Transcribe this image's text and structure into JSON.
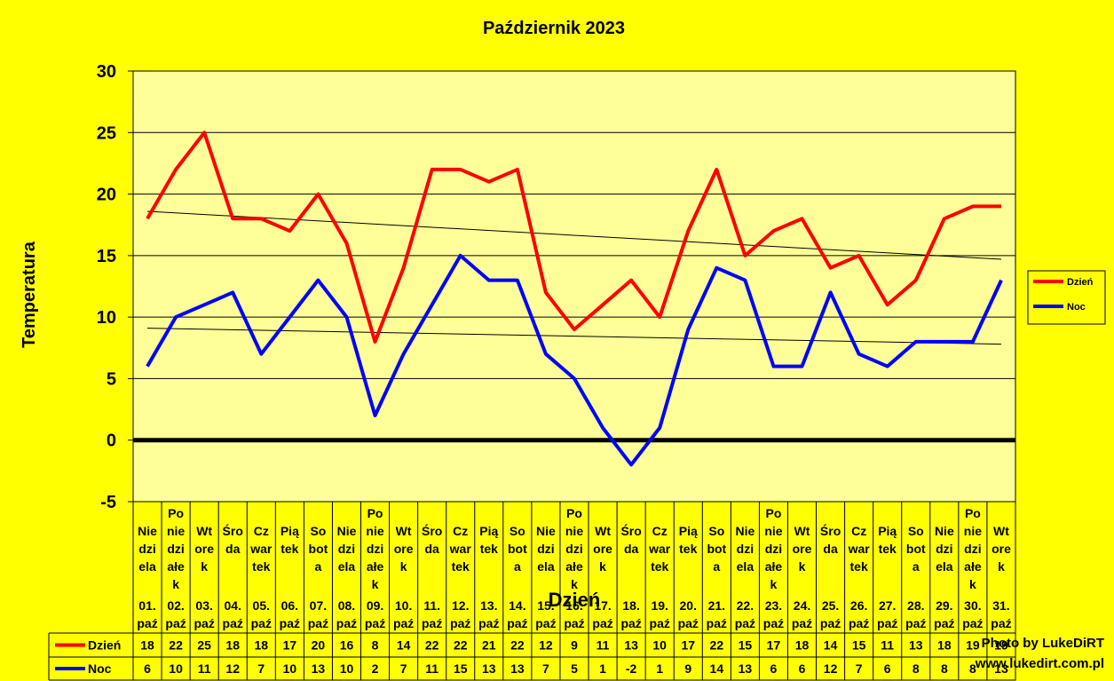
{
  "chart_data": {
    "type": "line",
    "title": "Październik 2023",
    "ylabel": "Temperatura",
    "xlabel": "Dzień",
    "ylim": [
      -5,
      30
    ],
    "yticks": [
      "30",
      "25",
      "20",
      "15",
      "10",
      "5",
      "0",
      "-5"
    ],
    "grid": true,
    "legend_position": "right",
    "weekdays": [
      [
        "Nie",
        "dzi",
        "ela"
      ],
      [
        "Po",
        "nie",
        "dzi",
        "ałe",
        "k"
      ],
      [
        "Wt",
        "ore",
        "k"
      ],
      [
        "Śro",
        "da"
      ],
      [
        "Cz",
        "war",
        "tek"
      ],
      [
        "Pią",
        "tek"
      ],
      [
        "So",
        "bot",
        "a"
      ],
      [
        "Nie",
        "dzi",
        "ela"
      ],
      [
        "Po",
        "nie",
        "dzi",
        "ałe",
        "k"
      ],
      [
        "Wt",
        "ore",
        "k"
      ],
      [
        "Śro",
        "da"
      ],
      [
        "Cz",
        "war",
        "tek"
      ],
      [
        "Pią",
        "tek"
      ],
      [
        "So",
        "bot",
        "a"
      ],
      [
        "Nie",
        "dzi",
        "ela"
      ],
      [
        "Po",
        "nie",
        "dzi",
        "ałe",
        "k"
      ],
      [
        "Wt",
        "ore",
        "k"
      ],
      [
        "Śro",
        "da"
      ],
      [
        "Cz",
        "war",
        "tek"
      ],
      [
        "Pią",
        "tek"
      ],
      [
        "So",
        "bot",
        "a"
      ],
      [
        "Nie",
        "dzi",
        "ela"
      ],
      [
        "Po",
        "nie",
        "dzi",
        "ałe",
        "k"
      ],
      [
        "Wt",
        "ore",
        "k"
      ],
      [
        "Śro",
        "da"
      ],
      [
        "Cz",
        "war",
        "tek"
      ],
      [
        "Pią",
        "tek"
      ],
      [
        "So",
        "bot",
        "a"
      ],
      [
        "Nie",
        "dzi",
        "ela"
      ],
      [
        "Po",
        "nie",
        "dzi",
        "ałe",
        "k"
      ],
      [
        "Wt",
        "ore",
        "k"
      ]
    ],
    "dates": [
      "01.",
      "02.",
      "03.",
      "04.",
      "05.",
      "06.",
      "07.",
      "08.",
      "09.",
      "10.",
      "11.",
      "12.",
      "13.",
      "14.",
      "15.",
      "16.",
      "17.",
      "18.",
      "19.",
      "20.",
      "21.",
      "22.",
      "23.",
      "24.",
      "25.",
      "26.",
      "27.",
      "28.",
      "29.",
      "30.",
      "31."
    ],
    "month_abbr": "paź",
    "series": [
      {
        "name": "Dzień",
        "color": "#FF0000",
        "values": [
          18,
          22,
          25,
          18,
          18,
          17,
          20,
          16,
          8,
          14,
          22,
          22,
          21,
          22,
          12,
          9,
          11,
          13,
          10,
          17,
          22,
          15,
          17,
          18,
          14,
          15,
          11,
          13,
          18,
          19,
          19
        ],
        "trend": [
          18.6,
          14.7
        ]
      },
      {
        "name": "Noc",
        "color": "#0000FF",
        "values": [
          6,
          10,
          11,
          12,
          7,
          10,
          13,
          10,
          2,
          7,
          11,
          15,
          13,
          13,
          7,
          5,
          1,
          -2,
          1,
          9,
          14,
          13,
          6,
          6,
          12,
          7,
          6,
          8,
          8,
          8,
          13
        ],
        "trend": [
          9.1,
          7.8
        ]
      }
    ]
  },
  "credit": {
    "line1": "Photo by LukeDiRT",
    "line2": "www.lukedirt.com.pl"
  }
}
